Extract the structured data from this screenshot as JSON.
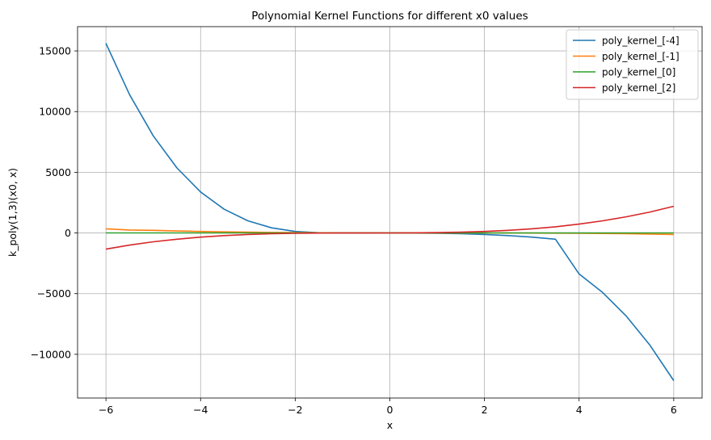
{
  "chart_data": {
    "type": "line",
    "title": "Polynomial Kernel Functions for different x0 values",
    "xlabel": "x",
    "ylabel": "k_poly(1,3)(x0, x)",
    "xlim": [
      -6.6,
      6.6
    ],
    "ylim": [
      -13600,
      17000
    ],
    "xticks": [
      -6,
      -4,
      -2,
      0,
      2,
      4,
      6
    ],
    "xtick_labels": [
      "−6",
      "−4",
      "−2",
      "0",
      "2",
      "4",
      "6"
    ],
    "yticks": [
      -10000,
      -5000,
      0,
      5000,
      10000,
      15000
    ],
    "ytick_labels": [
      "−10000",
      "−5000",
      "0",
      "5000",
      "10000",
      "15000"
    ],
    "grid": true,
    "legend_position": "top-right",
    "x": [
      -6,
      -5.5,
      -5,
      -4.5,
      -4,
      -3.5,
      -3,
      -2.5,
      -2,
      -1.5,
      -1,
      -0.5,
      0,
      0.5,
      1,
      1.5,
      2,
      2.5,
      3,
      3.5,
      4,
      4.5,
      5,
      5.5,
      6
    ],
    "series": [
      {
        "name": "poly_kernel_[-4]",
        "color": "#1f77b4",
        "values": [
          15625,
          11391,
          8000,
          5359,
          3375,
          1953,
          1000,
          422,
          125,
          16,
          0,
          -1,
          -1,
          -8,
          -27,
          -64,
          -125,
          -216,
          -343,
          -512,
          -3375,
          -4913,
          -6859,
          -9261,
          -12167
        ]
      },
      {
        "name": "poly_kernel_[-1]",
        "color": "#ff7f0e",
        "values": [
          343,
          244,
          216,
          166,
          125,
          91,
          64,
          42,
          27,
          15,
          8,
          3,
          1,
          0,
          0,
          -1,
          -1,
          -3,
          -8,
          -15,
          -27,
          -42,
          -64,
          -91,
          -125
        ]
      },
      {
        "name": "poly_kernel_[0]",
        "color": "#2ca02c",
        "values": [
          1,
          1,
          1,
          1,
          1,
          1,
          1,
          1,
          1,
          1,
          1,
          1,
          1,
          1,
          1,
          1,
          1,
          1,
          1,
          1,
          1,
          1,
          1,
          1,
          1
        ]
      },
      {
        "name": "poly_kernel_[2]",
        "color": "#d62728",
        "values": [
          -1331,
          -1000,
          -729,
          -512,
          -343,
          -216,
          -125,
          -64,
          -27,
          -8,
          -1,
          0,
          1,
          8,
          27,
          64,
          125,
          216,
          343,
          512,
          729,
          1000,
          1331,
          1728,
          2197
        ]
      }
    ]
  }
}
